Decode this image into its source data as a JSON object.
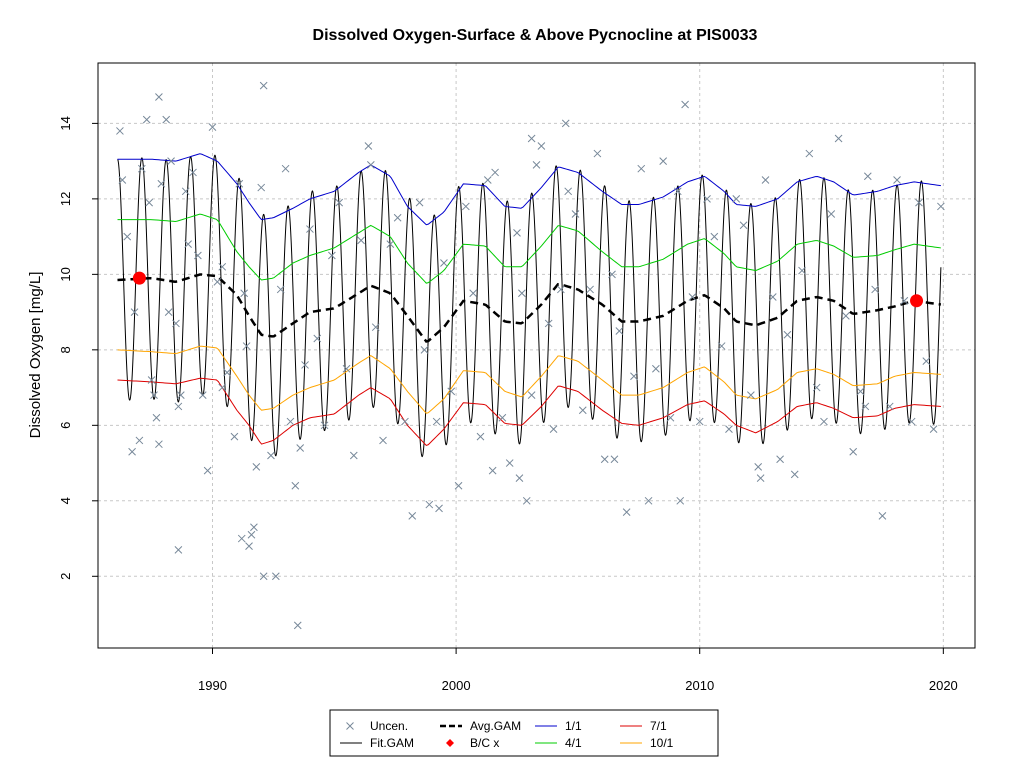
{
  "chart_data": {
    "type": "line",
    "title": "Dissolved Oxygen-Surface & Above Pycnocline at PIS0033",
    "xlabel": "",
    "ylabel": "Dissolved Oxygen [mg/L]",
    "xlim": [
      1985.3,
      2021.3
    ],
    "ylim": [
      0.1,
      15.6
    ],
    "x_ticks": [
      1990,
      2000,
      2010,
      2020
    ],
    "y_ticks": [
      2,
      4,
      6,
      8,
      10,
      12,
      14
    ],
    "grid": true,
    "legend_position": "bottom-center",
    "fit_gam": {
      "x_start": 1986.1,
      "x_end": 2019.9,
      "seasonal_amplitude": 3.2,
      "description_of_oscillation": "annual"
    },
    "avg_gam": {
      "x": [
        1986.1,
        1987.5,
        1988.5,
        1989.5,
        1990.2,
        1991.0,
        1991.5,
        1992.0,
        1992.5,
        1993.3,
        1994.0,
        1995.0,
        1996.0,
        1996.5,
        1997.3,
        1998.0,
        1998.8,
        1999.5,
        2000.3,
        2001.2,
        2002.0,
        2002.7,
        2003.5,
        2004.2,
        2005.0,
        2006.0,
        2006.8,
        2007.5,
        2008.5,
        2009.5,
        2010.2,
        2011.0,
        2011.5,
        2012.3,
        2013.2,
        2014.0,
        2014.8,
        2015.5,
        2016.3,
        2017.3,
        2018.0,
        2018.8,
        2019.9
      ],
      "y": [
        9.85,
        9.9,
        9.8,
        10.0,
        9.95,
        9.45,
        8.9,
        8.4,
        8.35,
        8.7,
        9.0,
        9.1,
        9.5,
        9.7,
        9.5,
        8.9,
        8.2,
        8.6,
        9.3,
        9.2,
        8.75,
        8.7,
        9.2,
        9.75,
        9.6,
        9.2,
        8.75,
        8.75,
        8.9,
        9.3,
        9.45,
        9.1,
        8.75,
        8.65,
        8.85,
        9.3,
        9.4,
        9.3,
        8.95,
        9.05,
        9.15,
        9.3,
        9.2
      ]
    },
    "percentile_curves": [
      {
        "name": "1/1",
        "color": "#0000cc",
        "x": [
          1986.1,
          1987.5,
          1988.5,
          1989.5,
          1990.2,
          1991.0,
          1991.5,
          1992.0,
          1992.5,
          1993.3,
          1994.0,
          1995.0,
          1996.0,
          1996.5,
          1997.3,
          1998.0,
          1998.8,
          1999.5,
          2000.3,
          2001.2,
          2002.0,
          2002.7,
          2003.5,
          2004.2,
          2005.0,
          2006.0,
          2006.8,
          2007.5,
          2008.5,
          2009.5,
          2010.2,
          2011.0,
          2011.5,
          2012.3,
          2013.2,
          2014.0,
          2014.8,
          2015.5,
          2016.3,
          2017.3,
          2018.0,
          2018.8,
          2019.9
        ],
        "y": [
          13.05,
          13.05,
          13.0,
          13.2,
          13.0,
          12.4,
          11.9,
          11.45,
          11.5,
          11.75,
          12.0,
          12.2,
          12.7,
          12.9,
          12.6,
          11.8,
          11.3,
          11.65,
          12.4,
          12.35,
          11.8,
          11.75,
          12.3,
          12.85,
          12.7,
          12.2,
          11.85,
          11.85,
          12.05,
          12.45,
          12.6,
          12.2,
          11.85,
          11.8,
          12.0,
          12.45,
          12.6,
          12.45,
          12.1,
          12.2,
          12.35,
          12.45,
          12.35
        ]
      },
      {
        "name": "4/1",
        "color": "#00cc00",
        "x": [
          1986.1,
          1987.5,
          1988.5,
          1989.5,
          1990.2,
          1991.0,
          1991.5,
          1992.0,
          1992.5,
          1993.3,
          1994.0,
          1995.0,
          1996.0,
          1996.5,
          1997.3,
          1998.0,
          1998.8,
          1999.5,
          2000.3,
          2001.2,
          2002.0,
          2002.7,
          2003.5,
          2004.2,
          2005.0,
          2006.0,
          2006.8,
          2007.5,
          2008.5,
          2009.5,
          2010.2,
          2011.0,
          2011.5,
          2012.3,
          2013.2,
          2014.0,
          2014.8,
          2015.5,
          2016.3,
          2017.3,
          2018.0,
          2018.8,
          2019.9
        ],
        "y": [
          11.45,
          11.45,
          11.4,
          11.6,
          11.45,
          10.6,
          10.2,
          9.85,
          9.9,
          10.3,
          10.5,
          10.7,
          11.1,
          11.3,
          11.0,
          10.3,
          9.75,
          10.1,
          10.8,
          10.75,
          10.2,
          10.2,
          10.75,
          11.3,
          11.15,
          10.6,
          10.2,
          10.2,
          10.4,
          10.8,
          10.95,
          10.55,
          10.2,
          10.1,
          10.35,
          10.8,
          10.9,
          10.75,
          10.45,
          10.5,
          10.65,
          10.8,
          10.7
        ]
      },
      {
        "name": "7/1",
        "color": "#dd0000",
        "x": [
          1986.1,
          1987.5,
          1988.5,
          1989.5,
          1990.2,
          1991.0,
          1991.5,
          1992.0,
          1992.5,
          1993.3,
          1994.0,
          1995.0,
          1996.0,
          1996.5,
          1997.3,
          1998.0,
          1998.8,
          1999.5,
          2000.3,
          2001.2,
          2002.0,
          2002.7,
          2003.5,
          2004.2,
          2005.0,
          2006.0,
          2006.8,
          2007.5,
          2008.5,
          2009.5,
          2010.2,
          2011.0,
          2011.5,
          2012.3,
          2013.2,
          2014.0,
          2014.8,
          2015.5,
          2016.3,
          2017.3,
          2018.0,
          2018.8,
          2019.9
        ],
        "y": [
          7.2,
          7.15,
          7.1,
          7.25,
          7.2,
          6.4,
          6.0,
          5.5,
          5.6,
          6.0,
          6.2,
          6.3,
          6.8,
          7.0,
          6.7,
          6.0,
          5.45,
          5.9,
          6.6,
          6.55,
          6.05,
          6.0,
          6.5,
          7.05,
          6.9,
          6.4,
          6.05,
          6.0,
          6.2,
          6.55,
          6.65,
          6.3,
          6.0,
          5.8,
          6.1,
          6.5,
          6.6,
          6.45,
          6.2,
          6.25,
          6.45,
          6.55,
          6.5
        ]
      },
      {
        "name": "10/1",
        "color": "#ffa500",
        "x": [
          1986.1,
          1987.5,
          1988.5,
          1989.5,
          1990.2,
          1991.0,
          1991.5,
          1992.0,
          1992.5,
          1993.3,
          1994.0,
          1995.0,
          1996.0,
          1996.5,
          1997.3,
          1998.0,
          1998.8,
          1999.5,
          2000.3,
          2001.2,
          2002.0,
          2002.7,
          2003.5,
          2004.2,
          2005.0,
          2006.0,
          2006.8,
          2007.5,
          2008.5,
          2009.5,
          2010.2,
          2011.0,
          2011.5,
          2012.3,
          2013.2,
          2014.0,
          2014.8,
          2015.5,
          2016.3,
          2017.3,
          2018.0,
          2018.8,
          2019.9
        ],
        "y": [
          8.0,
          7.95,
          7.9,
          8.1,
          8.05,
          7.3,
          6.8,
          6.4,
          6.45,
          6.8,
          7.0,
          7.2,
          7.65,
          7.85,
          7.5,
          6.9,
          6.3,
          6.7,
          7.45,
          7.4,
          6.9,
          6.75,
          7.3,
          7.85,
          7.7,
          7.2,
          6.8,
          6.8,
          7.0,
          7.4,
          7.55,
          7.15,
          6.8,
          6.7,
          6.95,
          7.4,
          7.5,
          7.35,
          7.05,
          7.1,
          7.3,
          7.4,
          7.35
        ]
      }
    ],
    "bc_points": {
      "x": [
        1987.0,
        2018.9
      ],
      "y": [
        9.9,
        9.3
      ],
      "color": "#ff0000"
    },
    "uncensored_points": {
      "color": "#778899",
      "x": [
        1986.2,
        1986.3,
        1986.5,
        1986.7,
        1986.8,
        1987.0,
        1987.1,
        1987.3,
        1987.4,
        1987.5,
        1987.6,
        1987.7,
        1987.8,
        1987.9,
        1988.1,
        1988.2,
        1988.3,
        1988.5,
        1988.6,
        1988.7,
        1988.9,
        1989.0,
        1989.2,
        1989.4,
        1989.6,
        1989.8,
        1990.0,
        1990.2,
        1990.4,
        1990.6,
        1990.9,
        1991.1,
        1991.3,
        1991.4,
        1991.5,
        1991.6,
        1991.7,
        1991.8,
        1992.0,
        1992.1,
        1992.4,
        1992.6,
        1992.8,
        1993.0,
        1993.2,
        1993.4,
        1993.6,
        1993.8,
        1994.0,
        1994.3,
        1994.6,
        1994.9,
        1995.2,
        1995.5,
        1995.8,
        1996.1,
        1996.4,
        1996.7,
        1997.0,
        1997.3,
        1997.6,
        1997.9,
        1998.2,
        1998.5,
        1998.7,
        1998.9,
        1999.2,
        1999.5,
        1999.8,
        2000.1,
        2000.4,
        2000.7,
        2001.0,
        2001.3,
        2001.6,
        2001.9,
        2002.2,
        2002.5,
        2002.7,
        2002.9,
        2003.1,
        2003.3,
        2003.5,
        2003.8,
        2004.0,
        2004.3,
        2004.6,
        2004.9,
        2005.2,
        2005.5,
        2005.8,
        2006.1,
        2006.4,
        2006.7,
        2007.0,
        2007.3,
        2007.6,
        2007.9,
        2008.2,
        2008.5,
        2008.8,
        2009.1,
        2009.4,
        2009.7,
        2010.0,
        2010.3,
        2010.6,
        2010.9,
        2011.2,
        2011.5,
        2011.8,
        2012.1,
        2012.4,
        2012.7,
        2013.0,
        2013.3,
        2013.6,
        2013.9,
        2014.2,
        2014.5,
        2014.8,
        2015.1,
        2015.4,
        2015.7,
        2016.0,
        2016.3,
        2016.6,
        2016.9,
        2017.2,
        2017.5,
        2017.8,
        2018.1,
        2018.4,
        2018.7,
        2019.0,
        2019.3,
        2019.6,
        2019.9,
        1988.6,
        1993.5,
        1992.1,
        1996.5,
        2004.5,
        2009.2,
        2003.1,
        1990.4,
        1991.2,
        2006.5,
        2016.8,
        2002.6,
        1999.3,
        1987.8,
        2001.5,
        2012.5
      ],
      "y": [
        13.8,
        12.5,
        11.0,
        5.3,
        9.0,
        5.6,
        12.8,
        14.1,
        11.9,
        7.2,
        6.8,
        6.2,
        5.5,
        12.4,
        14.1,
        9.0,
        13.0,
        8.7,
        6.5,
        6.8,
        12.2,
        10.8,
        12.7,
        10.5,
        6.8,
        4.8,
        13.9,
        9.8,
        10.2,
        7.4,
        5.7,
        12.4,
        9.5,
        8.1,
        2.8,
        3.1,
        3.3,
        4.9,
        12.3,
        15.0,
        5.2,
        2.0,
        9.6,
        12.8,
        6.1,
        4.4,
        5.4,
        7.6,
        11.2,
        8.3,
        6.0,
        10.5,
        11.9,
        7.5,
        5.2,
        10.9,
        13.4,
        8.6,
        5.6,
        10.8,
        11.5,
        6.1,
        3.6,
        11.9,
        8.0,
        3.9,
        6.1,
        10.3,
        6.9,
        4.4,
        11.8,
        9.5,
        5.7,
        12.5,
        12.7,
        6.2,
        5.0,
        11.1,
        9.5,
        4.0,
        6.8,
        12.9,
        13.4,
        8.7,
        5.9,
        9.6,
        12.2,
        11.6,
        6.4,
        9.6,
        13.2,
        5.1,
        10.0,
        8.5,
        3.7,
        7.3,
        12.8,
        4.0,
        7.5,
        13.0,
        6.2,
        12.2,
        14.5,
        9.4,
        6.1,
        12.0,
        11.0,
        8.1,
        5.9,
        12.0,
        11.3,
        6.8,
        4.9,
        12.5,
        9.4,
        5.1,
        8.4,
        4.7,
        10.1,
        13.2,
        7.0,
        6.1,
        11.6,
        13.6,
        8.9,
        5.3,
        6.9,
        12.6,
        9.6,
        3.6,
        6.5,
        12.5,
        9.3,
        6.1,
        11.9,
        7.7,
        5.9,
        11.8,
        2.7,
        0.7,
        2.0,
        12.9,
        14.0,
        4.0,
        13.6,
        7.0,
        3.0,
        5.1,
        6.5,
        4.6,
        3.8,
        14.7,
        4.8,
        4.6
      ]
    },
    "legend": [
      {
        "label": "Uncen.",
        "kind": "cross",
        "color": "#778899"
      },
      {
        "label": "Fit.GAM",
        "kind": "line",
        "color": "#000000"
      },
      {
        "label": "Avg.GAM",
        "kind": "dash",
        "color": "#000000"
      },
      {
        "label": "B/C x",
        "kind": "diamond",
        "color": "#ff0000"
      },
      {
        "label": "1/1",
        "kind": "line",
        "color": "#0000cc"
      },
      {
        "label": "4/1",
        "kind": "line",
        "color": "#00cc00"
      },
      {
        "label": "7/1",
        "kind": "line",
        "color": "#dd0000"
      },
      {
        "label": "10/1",
        "kind": "line",
        "color": "#ffa500"
      }
    ]
  }
}
